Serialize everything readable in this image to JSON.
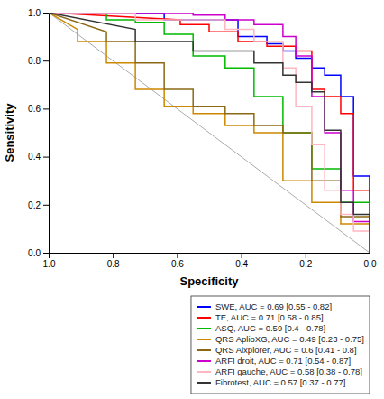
{
  "chart_data": {
    "type": "line",
    "xlabel": "Specificity",
    "ylabel": "Sensitivity",
    "xlim": [
      1,
      0
    ],
    "ylim": [
      0,
      1
    ],
    "xticks": [
      {
        "value": 1,
        "label": "1.0"
      },
      0.8,
      0.6,
      0.4,
      0.2,
      {
        "value": 0,
        "label": "0.0"
      }
    ],
    "yticks": [
      {
        "value": 0,
        "label": "0.0"
      },
      0.2,
      0.4,
      0.6,
      0.8,
      {
        "value": 1,
        "label": "1.0"
      }
    ],
    "grid": false,
    "legend": "lower right",
    "diagonal": {
      "x": [
        0,
        1
      ],
      "values": [
        0,
        1
      ],
      "color": "#AAAAAA"
    },
    "series": [
      {
        "name": "SWE, AUC = 0.69 [0.55 - 0.82]",
        "color": "#0000FF",
        "x": [
          0.0,
          0.0,
          0.05,
          0.05,
          0.09,
          0.09,
          0.14,
          0.14,
          0.18,
          0.18,
          0.23,
          0.23,
          0.27,
          0.27,
          0.32,
          0.32,
          0.41,
          0.41,
          0.55,
          0.55,
          0.64,
          0.64,
          1.0
        ],
        "values": [
          0.0,
          0.32,
          0.32,
          0.65,
          0.65,
          0.74,
          0.74,
          0.77,
          0.77,
          0.81,
          0.81,
          0.84,
          0.84,
          0.87,
          0.87,
          0.9,
          0.9,
          0.97,
          0.97,
          0.97,
          0.97,
          1.0,
          1.0
        ]
      },
      {
        "name": "TE, AUC = 0.71 [0.58 - 0.85]",
        "color": "#FF0000",
        "x": [
          0.0,
          0.0,
          0.05,
          0.05,
          0.09,
          0.09,
          0.14,
          0.14,
          0.18,
          0.18,
          0.23,
          0.23,
          0.32,
          0.32,
          0.41,
          0.41,
          0.5,
          0.5,
          0.59,
          0.59,
          1.0
        ],
        "values": [
          0.0,
          0.26,
          0.26,
          0.58,
          0.58,
          0.65,
          0.65,
          0.68,
          0.68,
          0.84,
          0.84,
          0.86,
          0.86,
          0.88,
          0.88,
          0.92,
          0.92,
          0.95,
          0.95,
          0.97,
          1.0
        ]
      },
      {
        "name": "ASQ, AUC = 0.59 [0.4 - 0.78]",
        "color": "#00BB00",
        "x": [
          0.0,
          0.0,
          0.09,
          0.09,
          0.18,
          0.18,
          0.27,
          0.27,
          0.36,
          0.36,
          0.45,
          0.45,
          0.55,
          0.55,
          0.64,
          0.64,
          0.73,
          0.73,
          0.82,
          0.82,
          1.0
        ],
        "values": [
          0.0,
          0.21,
          0.21,
          0.35,
          0.35,
          0.5,
          0.5,
          0.65,
          0.65,
          0.77,
          0.77,
          0.82,
          0.82,
          0.91,
          0.91,
          0.96,
          0.96,
          0.97,
          0.97,
          1.0,
          1.0
        ]
      },
      {
        "name": "QRS AplioXG, AUC = 0.49 [0.23 - 0.75]",
        "color": "#CC8800",
        "x": [
          0.0,
          0.0,
          0.09,
          0.09,
          0.18,
          0.18,
          0.27,
          0.27,
          0.36,
          0.36,
          0.45,
          0.45,
          0.55,
          0.55,
          0.64,
          0.64,
          0.73,
          0.73,
          0.82,
          0.82,
          0.91,
          0.91,
          1.0
        ],
        "values": [
          0.0,
          0.12,
          0.12,
          0.21,
          0.21,
          0.3,
          0.3,
          0.5,
          0.5,
          0.53,
          0.53,
          0.58,
          0.58,
          0.61,
          0.61,
          0.68,
          0.68,
          0.79,
          0.79,
          0.88,
          0.88,
          0.93,
          1.0
        ]
      },
      {
        "name": "QRS Aixplorer, AUC = 0.6 [0.41 - 0.8]",
        "color": "#8B6914",
        "x": [
          0.0,
          0.0,
          0.09,
          0.09,
          0.18,
          0.18,
          0.27,
          0.27,
          0.36,
          0.36,
          0.45,
          0.45,
          0.55,
          0.55,
          0.64,
          0.64,
          0.73,
          0.73,
          0.82,
          0.82,
          1.0
        ],
        "values": [
          0.0,
          0.15,
          0.15,
          0.3,
          0.3,
          0.5,
          0.5,
          0.53,
          0.53,
          0.58,
          0.58,
          0.61,
          0.61,
          0.68,
          0.68,
          0.79,
          0.79,
          0.88,
          0.88,
          0.92,
          1.0
        ]
      },
      {
        "name": "ARFI droit, AUC = 0.71 [0.54 - 0.87]",
        "color": "#CC00CC",
        "x": [
          0.0,
          0.0,
          0.05,
          0.05,
          0.09,
          0.09,
          0.14,
          0.14,
          0.18,
          0.18,
          0.23,
          0.23,
          0.27,
          0.27,
          0.36,
          0.36,
          0.45,
          0.45,
          0.55,
          0.55,
          1.0
        ],
        "values": [
          0.0,
          0.13,
          0.13,
          0.26,
          0.26,
          0.5,
          0.5,
          0.65,
          0.65,
          0.82,
          0.82,
          0.9,
          0.9,
          0.95,
          0.95,
          0.97,
          0.97,
          0.99,
          0.99,
          1.0,
          1.0
        ]
      },
      {
        "name": "ARFI gauche, AUC = 0.58 [0.38 - 0.78]",
        "color": "#FFB6C1",
        "x": [
          0.0,
          0.0,
          0.05,
          0.05,
          0.09,
          0.09,
          0.14,
          0.14,
          0.18,
          0.18,
          0.23,
          0.23,
          0.27,
          0.27,
          0.36,
          0.36,
          0.45,
          0.45,
          0.73,
          0.73,
          1.0
        ],
        "values": [
          0.0,
          0.09,
          0.09,
          0.16,
          0.16,
          0.26,
          0.26,
          0.45,
          0.45,
          0.61,
          0.61,
          0.77,
          0.77,
          0.88,
          0.88,
          0.93,
          0.93,
          0.97,
          0.97,
          1.0,
          1.0
        ]
      },
      {
        "name": "Fibrotest, AUC = 0.57 [0.37 - 0.77]",
        "color": "#333333",
        "x": [
          0.0,
          0.0,
          0.05,
          0.05,
          0.09,
          0.09,
          0.14,
          0.14,
          0.18,
          0.18,
          0.23,
          0.23,
          0.27,
          0.27,
          0.36,
          0.36,
          0.55,
          0.55,
          0.73,
          0.73,
          1.0
        ],
        "values": [
          0.0,
          0.16,
          0.16,
          0.21,
          0.21,
          0.51,
          0.51,
          0.67,
          0.67,
          0.71,
          0.71,
          0.74,
          0.74,
          0.79,
          0.79,
          0.84,
          0.84,
          0.88,
          0.88,
          0.93,
          1.0
        ]
      }
    ]
  }
}
